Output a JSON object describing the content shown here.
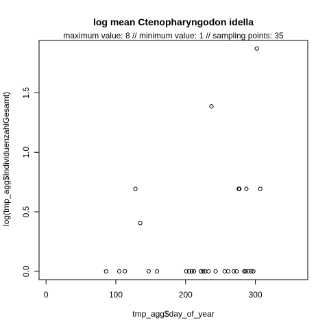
{
  "chart_data": {
    "type": "scatter",
    "title": "log mean Ctenopharyngodon idella",
    "subtitle": "maximum value: 8  //  minimum value: 1  // sampling points: 35",
    "xlabel": "tmp_agg$day_of_year",
    "ylabel": "log(tmp_agg$IndividuenzahlGesamt)",
    "xlim": [
      -10,
      375
    ],
    "ylim": [
      -0.07,
      1.94
    ],
    "xticks": [
      0,
      100,
      200,
      300
    ],
    "yticks": [
      0.0,
      0.5,
      1.0,
      1.5
    ],
    "xtick_labels": [
      "0",
      "100",
      "200",
      "300"
    ],
    "ytick_labels": [
      "0.0",
      "0.5",
      "1.0",
      "1.5"
    ],
    "grid": false,
    "series": [
      {
        "x": [
          86,
          105,
          113,
          128,
          135,
          147,
          159,
          201,
          205,
          209,
          212,
          222,
          225,
          228,
          233,
          237,
          243,
          256,
          261,
          269,
          273,
          276,
          277,
          284,
          286,
          287,
          290,
          294,
          297,
          302,
          307
        ],
        "y": [
          0,
          0,
          0,
          0.693,
          0.405,
          0,
          0,
          0,
          0,
          0,
          0,
          0,
          0,
          0,
          0,
          1.386,
          0,
          0,
          0,
          0,
          0,
          0.693,
          0.693,
          0,
          0,
          0.693,
          0,
          0,
          0,
          1.872,
          0.693
        ]
      }
    ]
  }
}
